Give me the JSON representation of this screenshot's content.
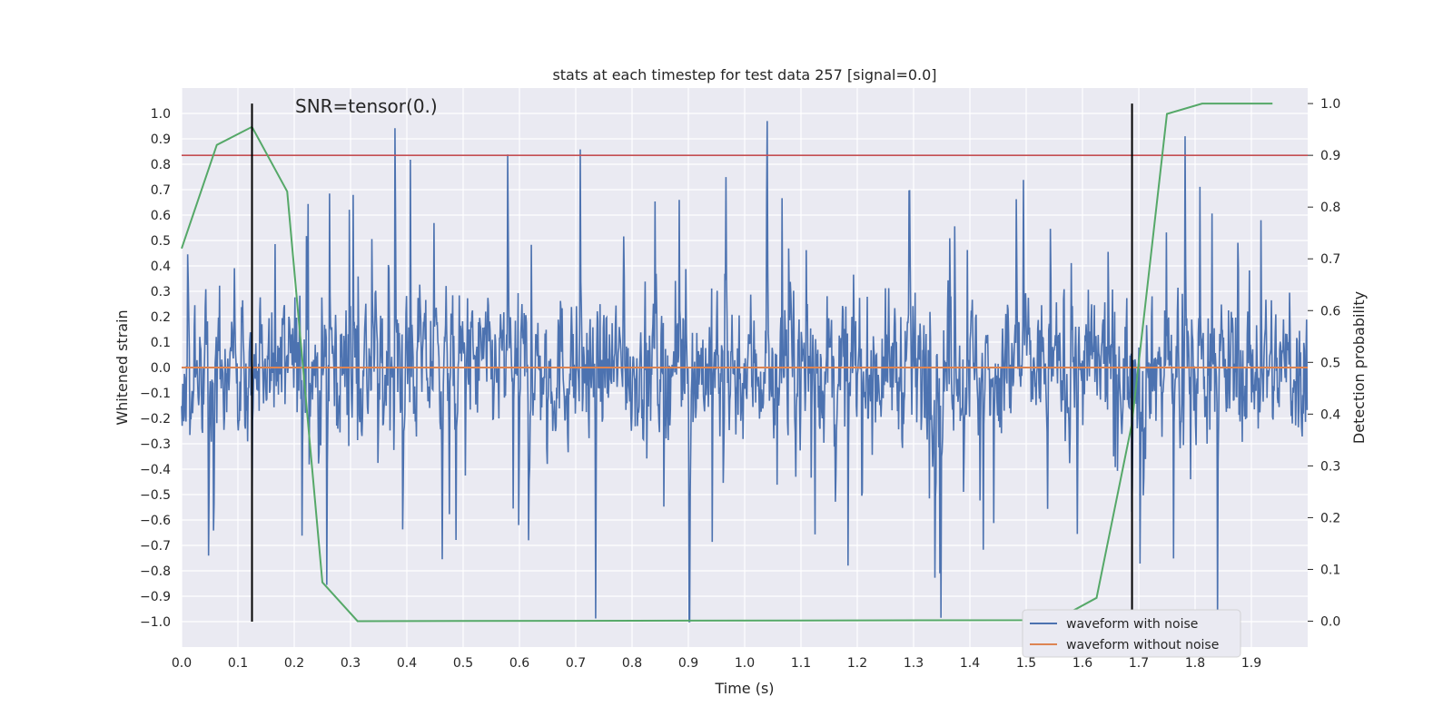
{
  "chart_data": {
    "type": "line",
    "title": "stats at each timestep for test data 257 [signal=0.0]",
    "xlabel": "Time (s)",
    "ylabel": "Whitened strain",
    "y2label": "Detection probability",
    "xlim": [
      0.0,
      2.0
    ],
    "ylim": [
      -1.1,
      1.1
    ],
    "y2lim": [
      -0.05,
      1.03
    ],
    "xticks": [
      "0.0",
      "0.1",
      "0.2",
      "0.3",
      "0.4",
      "0.5",
      "0.6",
      "0.7",
      "0.8",
      "0.9",
      "1.0",
      "1.1",
      "1.2",
      "1.3",
      "1.4",
      "1.5",
      "1.6",
      "1.7",
      "1.8",
      "1.9"
    ],
    "yticks": [
      "1.0",
      "0.9",
      "0.8",
      "0.7",
      "0.6",
      "0.5",
      "0.4",
      "0.3",
      "0.2",
      "0.1",
      "0.0",
      "−0.1",
      "−0.2",
      "−0.3",
      "−0.4",
      "−0.5",
      "−0.6",
      "−0.7",
      "−0.8",
      "−0.9",
      "−1.0"
    ],
    "y2ticks": [
      "1.0",
      "0.9",
      "0.8",
      "0.7",
      "0.6",
      "0.5",
      "0.4",
      "0.3",
      "0.2",
      "0.1",
      "0.0"
    ],
    "grid": true,
    "annotation": "SNR=tensor(0.)",
    "threshold_probability": 0.9,
    "vertical_markers_s": [
      0.125,
      1.688
    ],
    "noise": {
      "name": "waveform with noise",
      "color": "#4c72b0",
      "samples": 2048,
      "amplitude_range": [
        -1.0,
        0.97
      ],
      "note": "dense whitened noise trace spanning 0.0 to 2.0 s"
    },
    "series": [
      {
        "name": "waveform without noise",
        "color": "#dd8452",
        "axis": "left",
        "x": [
          0.0,
          2.0
        ],
        "values": [
          0.0,
          0.0
        ]
      },
      {
        "name": "detection probability",
        "color": "#55a868",
        "axis": "right",
        "x": [
          0.0,
          0.0625,
          0.125,
          0.1875,
          0.25,
          0.3125,
          1.5,
          1.5625,
          1.625,
          1.6875,
          1.75,
          1.8125,
          1.875,
          1.9375
        ],
        "values": [
          0.72,
          0.92,
          0.955,
          0.83,
          0.075,
          0.0,
          0.002,
          0.008,
          0.045,
          0.38,
          0.98,
          1.0,
          1.0,
          1.0
        ]
      }
    ],
    "threshold_color": "#c44e52",
    "legend": {
      "placement": "lower-right",
      "entries": [
        {
          "label": "waveform with noise",
          "color": "#4c72b0"
        },
        {
          "label": "waveform without noise",
          "color": "#dd8452"
        }
      ]
    },
    "plot_background": "#eaeaf2",
    "grid_color": "#ffffff"
  }
}
